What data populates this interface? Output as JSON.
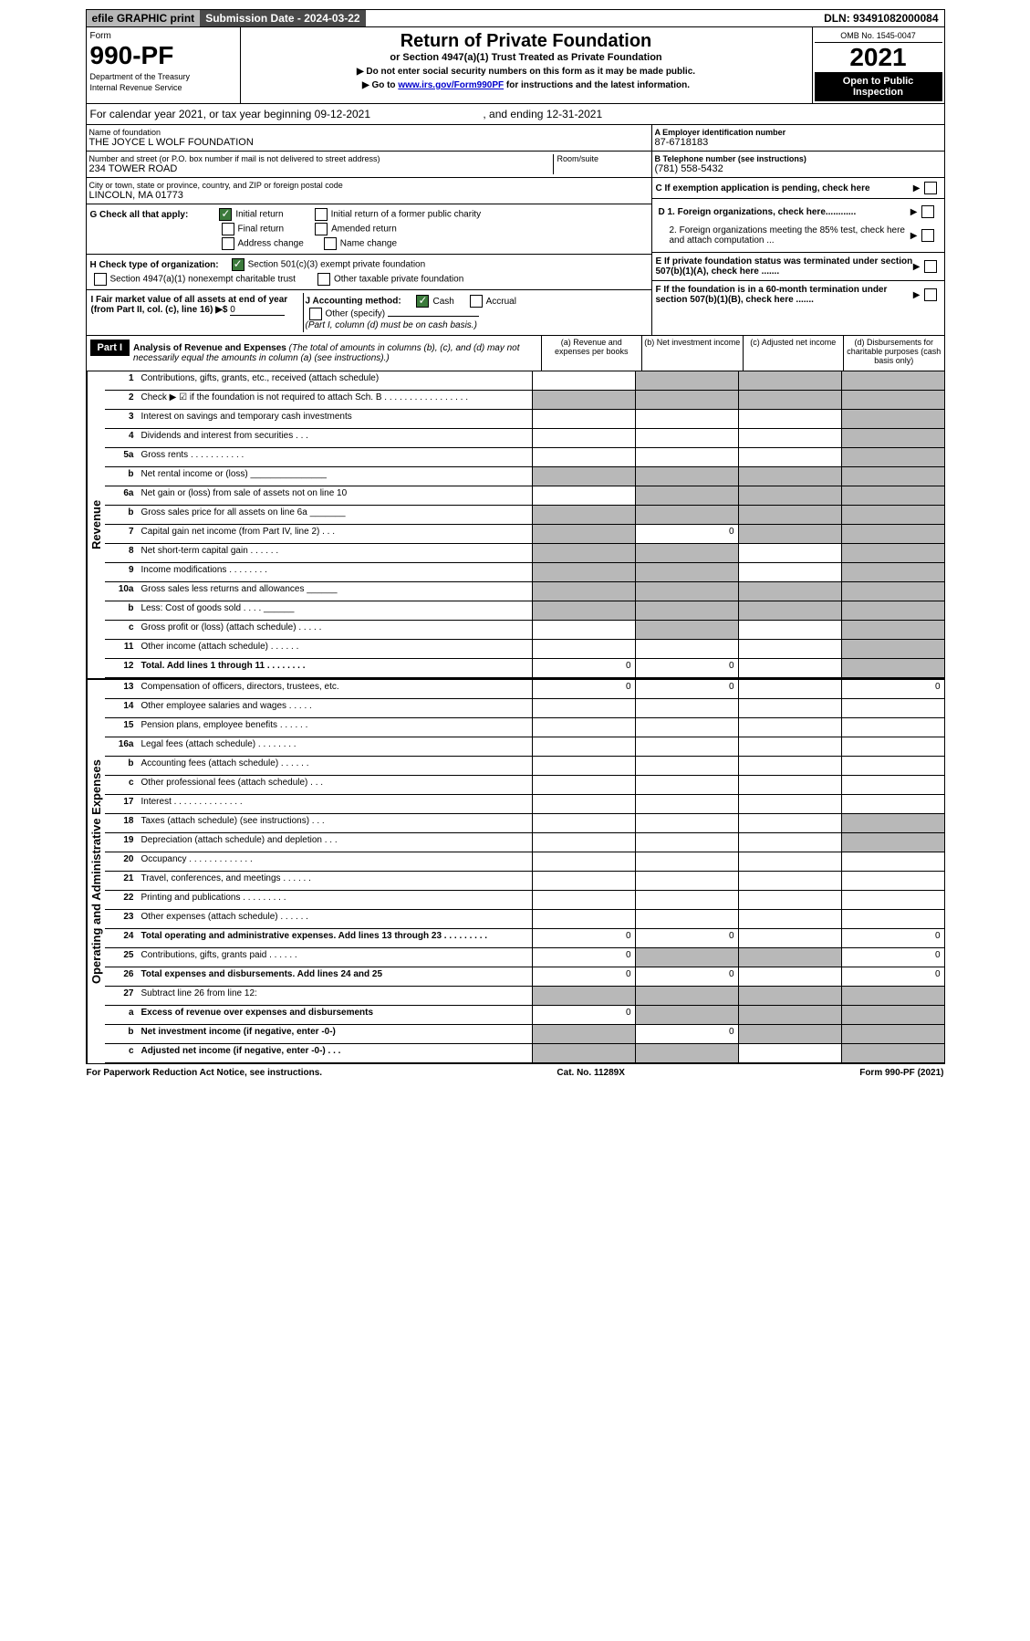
{
  "topbar": {
    "efile": "efile GRAPHIC print",
    "submission": "Submission Date - 2024-03-22",
    "dln": "DLN: 93491082000084"
  },
  "header": {
    "form_label": "Form",
    "form_number": "990-PF",
    "dept1": "Department of the Treasury",
    "dept2": "Internal Revenue Service",
    "title": "Return of Private Foundation",
    "subtitle": "or Section 4947(a)(1) Trust Treated as Private Foundation",
    "instr1": "▶ Do not enter social security numbers on this form as it may be made public.",
    "instr2_pre": "▶ Go to ",
    "instr2_link": "www.irs.gov/Form990PF",
    "instr2_post": " for instructions and the latest information.",
    "omb": "OMB No. 1545-0047",
    "year": "2021",
    "open": "Open to Public Inspection"
  },
  "calendar": {
    "text1": "For calendar year 2021, or tax year beginning 09-12-2021",
    "text2": ", and ending 12-31-2021"
  },
  "info": {
    "name_label": "Name of foundation",
    "name": "THE JOYCE L WOLF FOUNDATION",
    "street_label": "Number and street (or P.O. box number if mail is not delivered to street address)",
    "street": "234 TOWER ROAD",
    "room_label": "Room/suite",
    "city_label": "City or town, state or province, country, and ZIP or foreign postal code",
    "city": "LINCOLN, MA  01773",
    "ein_label": "A Employer identification number",
    "ein": "87-6718183",
    "phone_label": "B Telephone number (see instructions)",
    "phone": "(781) 558-5432",
    "c_label": "C If exemption application is pending, check here",
    "d1_label": "D 1. Foreign organizations, check here............",
    "d2_label": "2. Foreign organizations meeting the 85% test, check here and attach computation ...",
    "e_label": "E  If private foundation status was terminated under section 507(b)(1)(A), check here .......",
    "f_label": "F  If the foundation is in a 60-month termination under section 507(b)(1)(B), check here .......",
    "g_label": "G Check all that apply:",
    "g_opts": [
      "Initial return",
      "Initial return of a former public charity",
      "Final return",
      "Amended return",
      "Address change",
      "Name change"
    ],
    "h_label": "H Check type of organization:",
    "h_opts": [
      "Section 501(c)(3) exempt private foundation",
      "Section 4947(a)(1) nonexempt charitable trust",
      "Other taxable private foundation"
    ],
    "i_label": "I Fair market value of all assets at end of year (from Part II, col. (c), line 16) ▶$ ",
    "i_value": "0",
    "j_label": "J Accounting method:",
    "j_opts": [
      "Cash",
      "Accrual",
      "Other (specify)"
    ],
    "j_note": "(Part I, column (d) must be on cash basis.)"
  },
  "part1": {
    "label": "Part I",
    "title": "Analysis of Revenue and Expenses",
    "title_note": "(The total of amounts in columns (b), (c), and (d) may not necessarily equal the amounts in column (a) (see instructions).)",
    "cols": [
      "(a)   Revenue and expenses per books",
      "(b)   Net investment income",
      "(c)   Adjusted net income",
      "(d)   Disbursements for charitable purposes (cash basis only)"
    ]
  },
  "sections": {
    "revenue": "Revenue",
    "expenses": "Operating and Administrative Expenses"
  },
  "rows": [
    {
      "n": "1",
      "d": "Contributions, gifts, grants, etc., received (attach schedule)",
      "cells": [
        "",
        "g",
        "g",
        "g"
      ]
    },
    {
      "n": "2",
      "d": "Check ▶ ☑ if the foundation is not required to attach Sch. B   .  .  .  .  .  .  .  .  .  .  .  .  .  .  .  .  .",
      "cells": [
        "g",
        "g",
        "g",
        "g"
      ]
    },
    {
      "n": "3",
      "d": "Interest on savings and temporary cash investments",
      "cells": [
        "",
        "",
        "",
        "g"
      ]
    },
    {
      "n": "4",
      "d": "Dividends and interest from securities   .   .   .",
      "cells": [
        "",
        "",
        "",
        "g"
      ]
    },
    {
      "n": "5a",
      "d": "Gross rents   .   .   .   .   .   .   .   .   .   .   .",
      "cells": [
        "",
        "",
        "",
        "g"
      ]
    },
    {
      "n": "b",
      "d": "Net rental income or (loss)  _______________",
      "cells": [
        "g",
        "g",
        "g",
        "g"
      ]
    },
    {
      "n": "6a",
      "d": "Net gain or (loss) from sale of assets not on line 10",
      "cells": [
        "",
        "g",
        "g",
        "g"
      ]
    },
    {
      "n": "b",
      "d": "Gross sales price for all assets on line 6a _______",
      "cells": [
        "g",
        "g",
        "g",
        "g"
      ]
    },
    {
      "n": "7",
      "d": "Capital gain net income (from Part IV, line 2)   .   .   .",
      "cells": [
        "g",
        "0",
        "g",
        "g"
      ]
    },
    {
      "n": "8",
      "d": "Net short-term capital gain   .   .   .   .   .   .",
      "cells": [
        "g",
        "g",
        "",
        "g"
      ]
    },
    {
      "n": "9",
      "d": "Income modifications   .   .   .   .   .   .   .   .",
      "cells": [
        "g",
        "g",
        "",
        "g"
      ]
    },
    {
      "n": "10a",
      "d": "Gross sales less returns and allowances  ______",
      "cells": [
        "g",
        "g",
        "g",
        "g"
      ]
    },
    {
      "n": "b",
      "d": "Less: Cost of goods sold   .   .   .   .   ______",
      "cells": [
        "g",
        "g",
        "g",
        "g"
      ]
    },
    {
      "n": "c",
      "d": "Gross profit or (loss) (attach schedule)   .   .   .   .   .",
      "cells": [
        "",
        "g",
        "",
        "g"
      ]
    },
    {
      "n": "11",
      "d": "Other income (attach schedule)   .   .   .   .   .   .",
      "cells": [
        "",
        "",
        "",
        "g"
      ]
    },
    {
      "n": "12",
      "d": "Total. Add lines 1 through 11   .   .   .   .   .   .   .   .",
      "bold": true,
      "cells": [
        "0",
        "0",
        "",
        "g"
      ]
    }
  ],
  "expense_rows": [
    {
      "n": "13",
      "d": "Compensation of officers, directors, trustees, etc.",
      "cells": [
        "0",
        "0",
        "",
        "0"
      ]
    },
    {
      "n": "14",
      "d": "Other employee salaries and wages   .   .   .   .   .",
      "cells": [
        "",
        "",
        "",
        ""
      ]
    },
    {
      "n": "15",
      "d": "Pension plans, employee benefits   .   .   .   .   .   .",
      "cells": [
        "",
        "",
        "",
        ""
      ]
    },
    {
      "n": "16a",
      "d": "Legal fees (attach schedule)   .   .   .   .   .   .   .   .",
      "cells": [
        "",
        "",
        "",
        ""
      ]
    },
    {
      "n": "b",
      "d": "Accounting fees (attach schedule)   .   .   .   .   .   .",
      "cells": [
        "",
        "",
        "",
        ""
      ]
    },
    {
      "n": "c",
      "d": "Other professional fees (attach schedule)   .   .   .",
      "cells": [
        "",
        "",
        "",
        ""
      ]
    },
    {
      "n": "17",
      "d": "Interest   .   .   .   .   .   .   .   .   .   .   .   .   .   .",
      "cells": [
        "",
        "",
        "",
        ""
      ]
    },
    {
      "n": "18",
      "d": "Taxes (attach schedule) (see instructions)   .   .   .",
      "cells": [
        "",
        "",
        "",
        "g"
      ]
    },
    {
      "n": "19",
      "d": "Depreciation (attach schedule) and depletion   .   .   .",
      "cells": [
        "",
        "",
        "",
        "g"
      ]
    },
    {
      "n": "20",
      "d": "Occupancy   .   .   .   .   .   .   .   .   .   .   .   .   .",
      "cells": [
        "",
        "",
        "",
        ""
      ]
    },
    {
      "n": "21",
      "d": "Travel, conferences, and meetings   .   .   .   .   .   .",
      "cells": [
        "",
        "",
        "",
        ""
      ]
    },
    {
      "n": "22",
      "d": "Printing and publications   .   .   .   .   .   .   .   .   .",
      "cells": [
        "",
        "",
        "",
        ""
      ]
    },
    {
      "n": "23",
      "d": "Other expenses (attach schedule)   .   .   .   .   .   .",
      "cells": [
        "",
        "",
        "",
        ""
      ]
    },
    {
      "n": "24",
      "d": "Total operating and administrative expenses. Add lines 13 through 23   .   .   .   .   .   .   .   .   .",
      "bold": true,
      "cells": [
        "0",
        "0",
        "",
        "0"
      ]
    },
    {
      "n": "25",
      "d": "Contributions, gifts, grants paid   .   .   .   .   .   .",
      "cells": [
        "0",
        "g",
        "g",
        "0"
      ]
    },
    {
      "n": "26",
      "d": "Total expenses and disbursements. Add lines 24 and 25",
      "bold": true,
      "cells": [
        "0",
        "0",
        "",
        "0"
      ]
    },
    {
      "n": "27",
      "d": "Subtract line 26 from line 12:",
      "cells": [
        "g",
        "g",
        "g",
        "g"
      ]
    },
    {
      "n": "a",
      "d": "Excess of revenue over expenses and disbursements",
      "bold": true,
      "cells": [
        "0",
        "g",
        "g",
        "g"
      ]
    },
    {
      "n": "b",
      "d": "Net investment income (if negative, enter -0-)",
      "bold": true,
      "cells": [
        "g",
        "0",
        "g",
        "g"
      ]
    },
    {
      "n": "c",
      "d": "Adjusted net income (if negative, enter -0-)   .   .   .",
      "bold": true,
      "cells": [
        "g",
        "g",
        "",
        "g"
      ]
    }
  ],
  "footer": {
    "left": "For Paperwork Reduction Act Notice, see instructions.",
    "mid": "Cat. No. 11289X",
    "right": "Form 990-PF (2021)"
  }
}
